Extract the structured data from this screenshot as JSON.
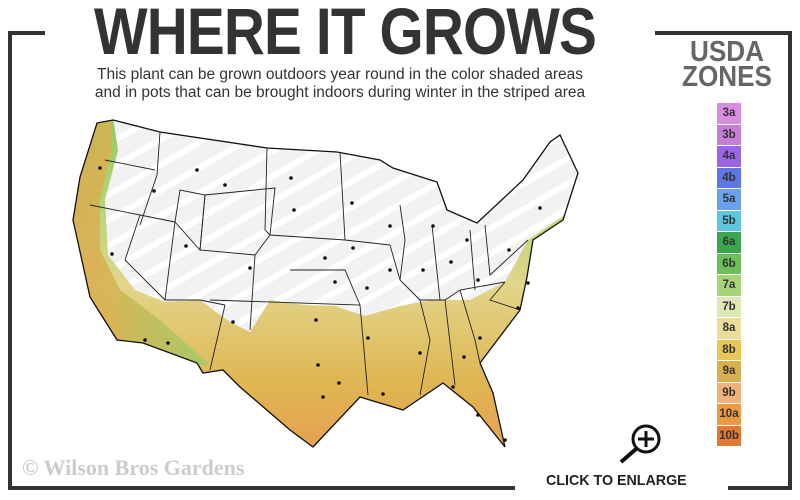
{
  "header": {
    "title": "WHERE IT GROWS",
    "subtitle_line1": "This plant can be grown outdoors year round in the color shaded areas",
    "subtitle_line2": "and in pots that can be brought indoors during winter in the striped area"
  },
  "legend": {
    "title_line1": "USDA",
    "title_line2": "ZONES",
    "zones": [
      {
        "label": "3a",
        "color": "#d98be0"
      },
      {
        "label": "3b",
        "color": "#c77fd6"
      },
      {
        "label": "4a",
        "color": "#9b66e6"
      },
      {
        "label": "4b",
        "color": "#5d77e6"
      },
      {
        "label": "5a",
        "color": "#6aa0ee"
      },
      {
        "label": "5b",
        "color": "#5ec6e0"
      },
      {
        "label": "6a",
        "color": "#3aa64e"
      },
      {
        "label": "6b",
        "color": "#6cc05a"
      },
      {
        "label": "7a",
        "color": "#a6d47a"
      },
      {
        "label": "7b",
        "color": "#dde8b4"
      },
      {
        "label": "8a",
        "color": "#ecdc9a"
      },
      {
        "label": "8b",
        "color": "#e8c65a"
      },
      {
        "label": "9a",
        "color": "#d8b050"
      },
      {
        "label": "9b",
        "color": "#f0b27a"
      },
      {
        "label": "10a",
        "color": "#eb9a44"
      },
      {
        "label": "10b",
        "color": "#e07a30"
      }
    ]
  },
  "footer": {
    "copyright": "© Wilson Bros Gardens",
    "enlarge_label": "CLICK TO ENLARGE",
    "enlarge_icon": "zoom-in-magnifier-icon"
  }
}
